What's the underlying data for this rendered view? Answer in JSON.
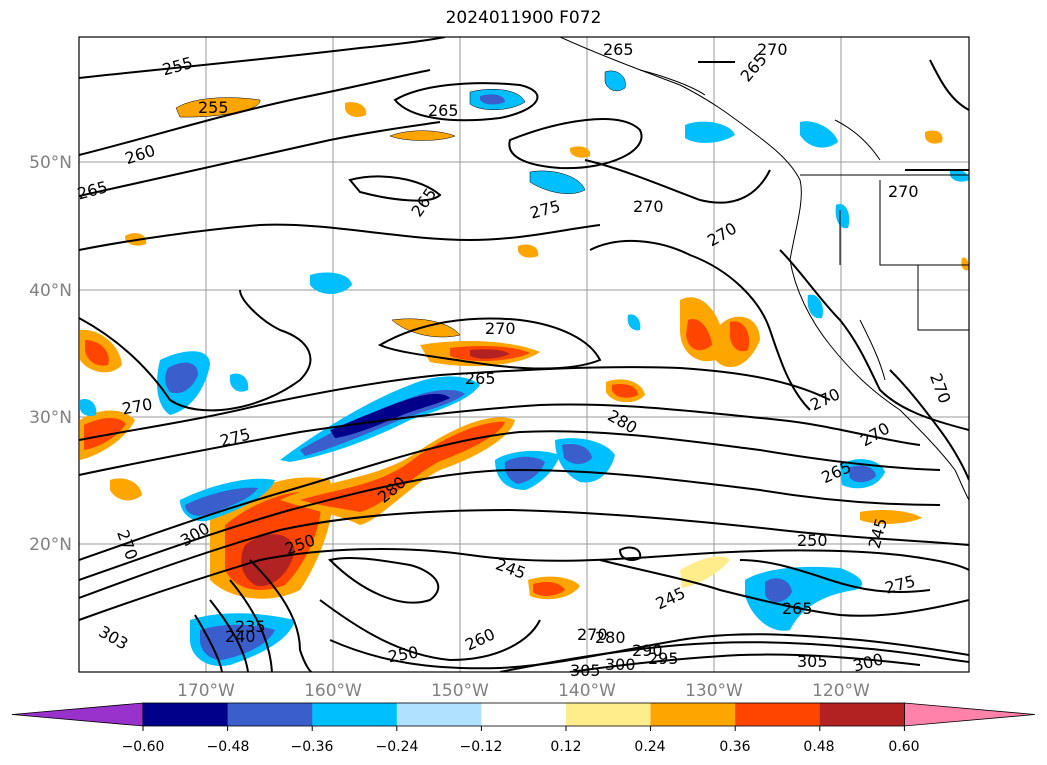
{
  "title": "2024011900 F072",
  "lat_labels": [
    "50°N",
    "40°N",
    "30°N",
    "20°N"
  ],
  "lon_labels": [
    "170°W",
    "160°W",
    "150°W",
    "140°W",
    "130°W",
    "120°W"
  ],
  "colorbar": {
    "ticks": [
      "−0.60",
      "−0.48",
      "−0.36",
      "−0.24",
      "−0.12",
      "0.12",
      "0.24",
      "0.36",
      "0.48",
      "0.60"
    ],
    "colors": [
      "#9932cc",
      "#00008b",
      "#3a5fcd",
      "#00bfff",
      "#b0e2ff",
      "#ffffff",
      "#ffec8b",
      "#ffa500",
      "#ff4500",
      "#b22222",
      "#ff82ab"
    ]
  },
  "contour_labels": [
    "255",
    "255",
    "260",
    "265",
    "265",
    "265",
    "265",
    "265",
    "270",
    "270",
    "270",
    "270",
    "275",
    "270",
    "270",
    "270",
    "265",
    "270",
    "275",
    "270",
    "280",
    "280",
    "265",
    "270",
    "245",
    "250",
    "245",
    "250",
    "235",
    "240",
    "245",
    "260",
    "250",
    "270",
    "280",
    "290",
    "295",
    "300",
    "305",
    "265",
    "275",
    "305",
    "300",
    "300",
    "303"
  ]
}
